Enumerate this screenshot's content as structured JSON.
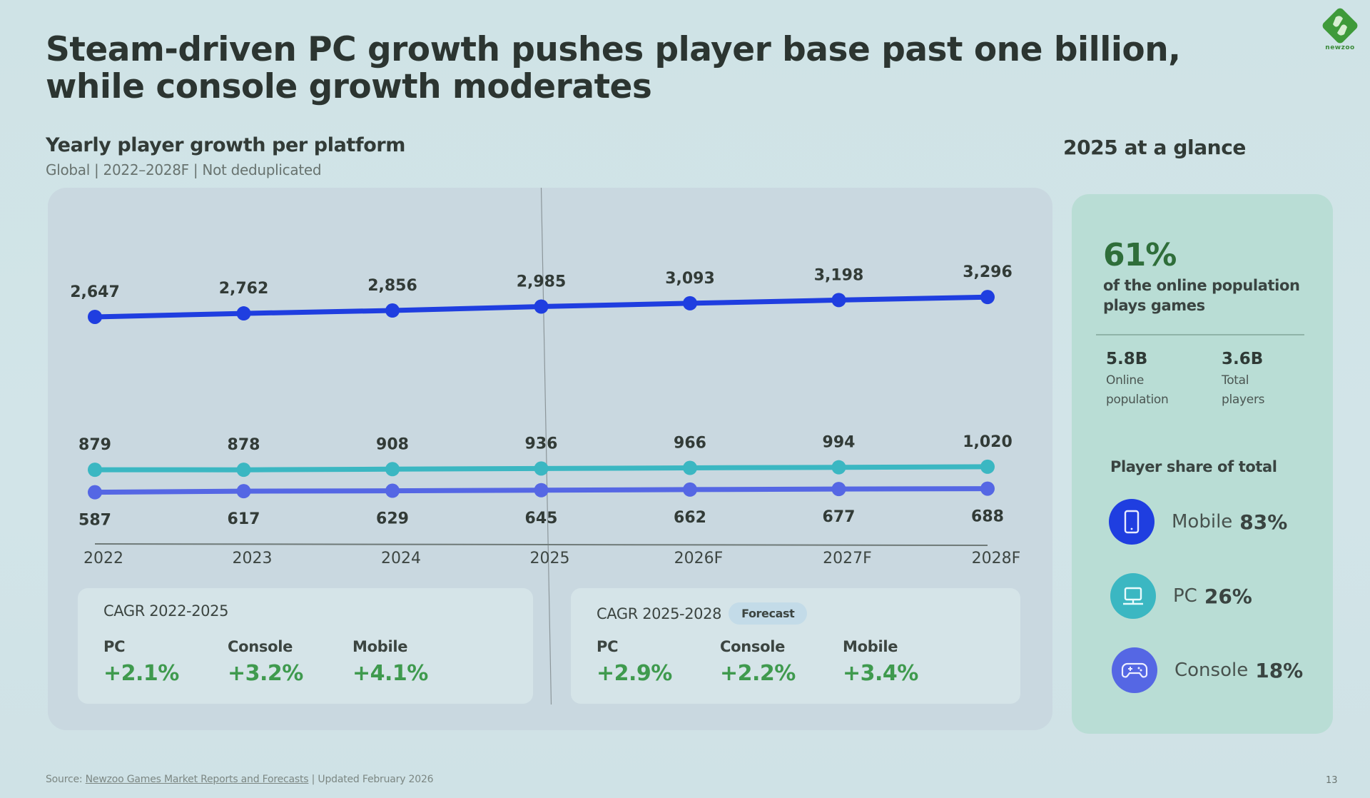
{
  "slide": {
    "title": "Steam-driven PC growth pushes player base past one billion, while console growth moderates",
    "logo_text": "newzoo",
    "page_number": "13"
  },
  "chart_section": {
    "heading": "Yearly player growth per platform",
    "subheading": "Global | 2022–2028F | Not deduplicated"
  },
  "chart_data": {
    "type": "line",
    "title": "Yearly player growth per platform",
    "subtitle": "Global | 2022–2028F | Not deduplicated",
    "xlabel": "",
    "ylabel": "",
    "grid": false,
    "categories": [
      "2022",
      "2023",
      "2024",
      "2025",
      "2026F",
      "2027F",
      "2028F"
    ],
    "divider_after": "2025",
    "series": [
      {
        "name": "Mobile",
        "color": "#1f3ee0",
        "values": [
          2647,
          2762,
          2856,
          2985,
          3093,
          3198,
          3296
        ],
        "labels": [
          "2,647",
          "2,762",
          "2,856",
          "2,985",
          "3,093",
          "3,198",
          "3,296"
        ],
        "label_position": "above"
      },
      {
        "name": "PC",
        "color": "#3bb7c2",
        "values": [
          879,
          878,
          908,
          936,
          966,
          994,
          1020
        ],
        "labels": [
          "879",
          "878",
          "908",
          "936",
          "966",
          "994",
          "1,020"
        ],
        "label_position": "above"
      },
      {
        "name": "Console",
        "color": "#5567e4",
        "values": [
          587,
          617,
          629,
          645,
          662,
          677,
          688
        ],
        "labels": [
          "587",
          "617",
          "629",
          "645",
          "662",
          "677",
          "688"
        ],
        "label_position": "below"
      }
    ]
  },
  "cagr": [
    {
      "title": "CAGR 2022-2025",
      "badge": null,
      "items": [
        {
          "platform": "PC",
          "value": "+2.1%"
        },
        {
          "platform": "Console",
          "value": "+3.2%"
        },
        {
          "platform": "Mobile",
          "value": "+4.1%"
        }
      ]
    },
    {
      "title": "CAGR 2025-2028",
      "badge": "Forecast",
      "items": [
        {
          "platform": "PC",
          "value": "+2.9%"
        },
        {
          "platform": "Console",
          "value": "+2.2%"
        },
        {
          "platform": "Mobile",
          "value": "+3.4%"
        }
      ]
    }
  ],
  "glance": {
    "heading": "2025 at a glance",
    "headline_pct": "61%",
    "headline_desc": "of the online population plays games",
    "stats": [
      {
        "value": "5.8B",
        "caption_line1": "Online",
        "caption_line2": "population"
      },
      {
        "value": "3.6B",
        "caption_line1": "Total",
        "caption_line2": "players"
      }
    ],
    "share_heading": "Player share of total",
    "shares": [
      {
        "platform": "Mobile",
        "pct": "83%",
        "icon": "smartphone-icon",
        "color": "#1f3ee0"
      },
      {
        "platform": "PC",
        "pct": "26%",
        "icon": "monitor-icon",
        "color": "#3bb7c2"
      },
      {
        "platform": "Console",
        "pct": "18%",
        "icon": "gamepad-icon",
        "color": "#5567e4"
      }
    ]
  },
  "footer": {
    "source_prefix": "Source: ",
    "source_link": "Newzoo Games Market Reports and Forecasts",
    "source_suffix": " | Updated February 2026"
  }
}
